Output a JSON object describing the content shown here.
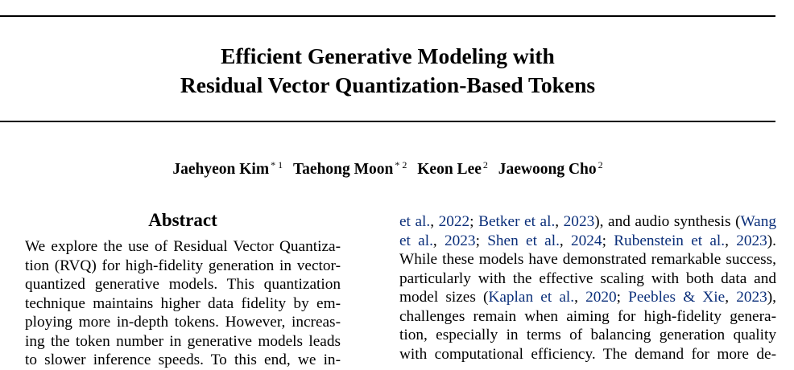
{
  "paper": {
    "title_line1": "Efficient Generative Modeling with",
    "title_line2": "Residual Vector Quantization-Based Tokens",
    "authors": [
      {
        "name": "Jaehyeon Kim",
        "marks": "* 1"
      },
      {
        "name": "Taehong Moon",
        "marks": "* 2"
      },
      {
        "name": "Keon Lee",
        "marks": "2"
      },
      {
        "name": "Jaewoong Cho",
        "marks": "2"
      }
    ],
    "abstract_heading": "Abstract",
    "abstract_lines": [
      "We explore the use of Residual Vector Quantiza-",
      "tion (RVQ) for high-fidelity generation in vector-",
      "quantized generative models. This quantization",
      "technique maintains higher data fidelity by em-",
      "ploying more in-depth tokens. However, increas-",
      "ing the token number in generative models leads",
      "to slower inference speeds. To this end, we in-"
    ],
    "intro": {
      "l1": {
        "c1": "et al.",
        "t1": ", ",
        "c2": "2022",
        "t2": "; ",
        "c3": "Betker et al.",
        "t3": ", ",
        "c4": "2023",
        "t4": "), and audio synthesis (",
        "c5": "Wang"
      },
      "l2": {
        "c1": "et al.",
        "t1": ", ",
        "c2": "2023",
        "t2": "; ",
        "c3": "Shen et al.",
        "t3": ", ",
        "c4": "2024",
        "t4": "; ",
        "c5": "Rubenstein et al.",
        "t5": ", ",
        "c6": "2023",
        "t6": ")."
      },
      "l3": "While these models have demonstrated remarkable success,",
      "l4": "particularly with the effective scaling with both data and",
      "l5": {
        "t0": "model sizes (",
        "c1": "Kaplan et al.",
        "t1": ", ",
        "c2": "2020",
        "t2": "; ",
        "c3": "Peebles & Xie",
        "t3": ", ",
        "c4": "2023",
        "t4": "),"
      },
      "l6": "challenges remain when aiming for high-fidelity genera-",
      "l7": "tion, especially in terms of balancing generation quality",
      "l8": "with computational efficiency. The demand for more de-"
    },
    "link_color": "#0b2f7a"
  }
}
